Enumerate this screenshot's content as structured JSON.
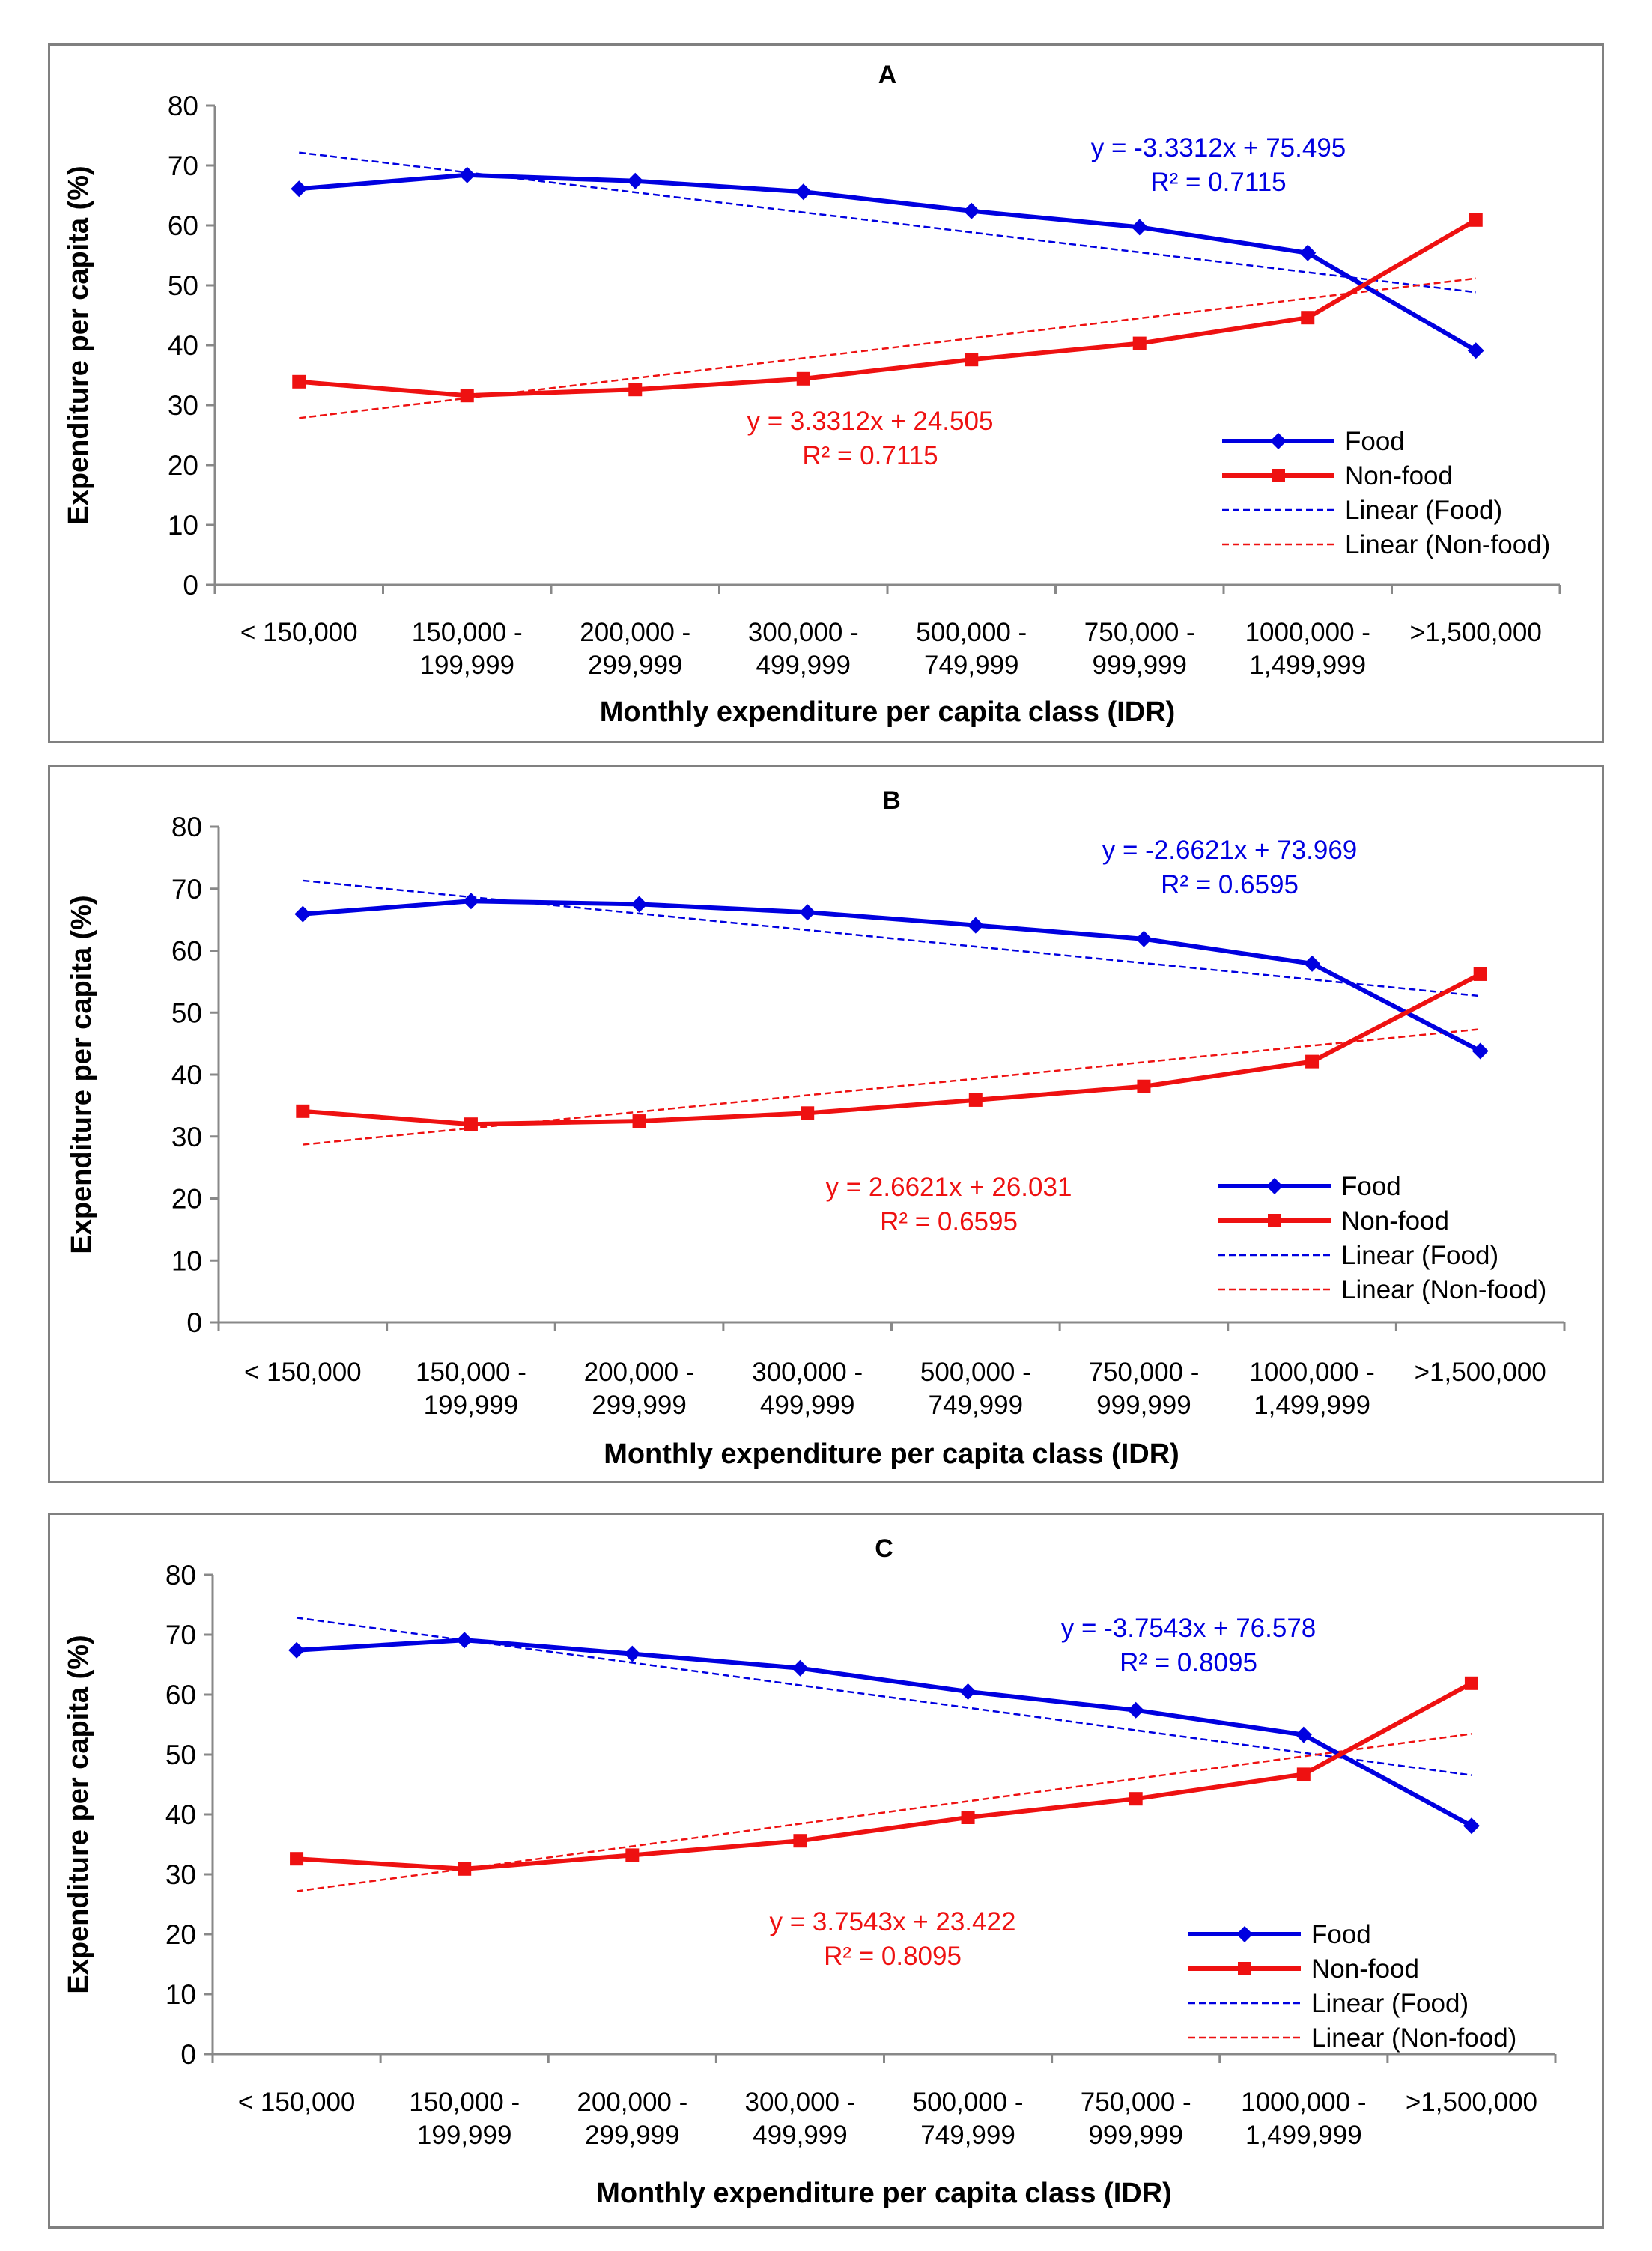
{
  "chart_data": [
    {
      "type": "line",
      "panel_label": "A",
      "xlabel": "Monthly expenditure per capita class (IDR)",
      "ylabel": "Expenditure per capita (%)",
      "ylim": [
        0,
        80
      ],
      "yticks": [
        "0",
        "10",
        "20",
        "30",
        "40",
        "50",
        "60",
        "70",
        "80"
      ],
      "categories": [
        [
          "< 150,000"
        ],
        [
          "150,000 -",
          "199,999"
        ],
        [
          "200,000 -",
          "299,999"
        ],
        [
          "300,000 -",
          "499,999"
        ],
        [
          "500,000 -",
          "749,999"
        ],
        [
          "750,000 -",
          "999,999"
        ],
        [
          "1000,000 -",
          "1,499,999"
        ],
        [
          ">1,500,000"
        ]
      ],
      "series": [
        {
          "name": "Food",
          "color": "#0000E0",
          "marker": "diamond",
          "values": [
            66.1,
            68.4,
            67.4,
            65.6,
            62.4,
            59.7,
            55.4,
            39.1
          ]
        },
        {
          "name": "Non-food",
          "color": "#EE1111",
          "marker": "square",
          "values": [
            33.9,
            31.6,
            32.6,
            34.4,
            37.6,
            40.3,
            44.6,
            60.9
          ]
        }
      ],
      "trendlines": [
        {
          "name": "Linear (Food)",
          "color": "#0000E0",
          "slope": -3.3312,
          "intercept": 75.495,
          "equation": "y = -3.3312x + 75.495",
          "r2": "R² = 0.7115",
          "label_position": "top-right"
        },
        {
          "name": "Linear (Non-food)",
          "color": "#EE1111",
          "slope": 3.3312,
          "intercept": 24.505,
          "equation": "y = 3.3312x + 24.505",
          "r2": "R² = 0.7115",
          "label_position": "center"
        }
      ],
      "legend": [
        "Food",
        "Non-food",
        "Linear (Food)",
        "Linear (Non-food)"
      ],
      "legend_position": "bottom-right"
    },
    {
      "type": "line",
      "panel_label": "B",
      "xlabel": "Monthly expenditure per capita class (IDR)",
      "ylabel": "Expenditure per capita (%)",
      "ylim": [
        0,
        80
      ],
      "yticks": [
        "0",
        "10",
        "20",
        "30",
        "40",
        "50",
        "60",
        "70",
        "80"
      ],
      "categories": [
        [
          "< 150,000"
        ],
        [
          "150,000 -",
          "199,999"
        ],
        [
          "200,000 -",
          "299,999"
        ],
        [
          "300,000 -",
          "499,999"
        ],
        [
          "500,000 -",
          "749,999"
        ],
        [
          "750,000 -",
          "999,999"
        ],
        [
          "1000,000 -",
          "1,499,999"
        ],
        [
          ">1,500,000"
        ]
      ],
      "series": [
        {
          "name": "Food",
          "color": "#0000E0",
          "marker": "diamond",
          "values": [
            65.9,
            68.0,
            67.5,
            66.2,
            64.1,
            61.9,
            57.9,
            43.8
          ]
        },
        {
          "name": "Non-food",
          "color": "#EE1111",
          "marker": "square",
          "values": [
            34.1,
            32.0,
            32.5,
            33.8,
            35.9,
            38.1,
            42.1,
            56.2
          ]
        }
      ],
      "trendlines": [
        {
          "name": "Linear (Food)",
          "color": "#0000E0",
          "slope": -2.6621,
          "intercept": 73.969,
          "equation": "y = -2.6621x + 73.969",
          "r2": "R² = 0.6595",
          "label_position": "top-right"
        },
        {
          "name": "Linear (Non-food)",
          "color": "#EE1111",
          "slope": 2.6621,
          "intercept": 26.031,
          "equation": "y = 2.6621x + 26.031",
          "r2": "R² = 0.6595",
          "label_position": "center"
        }
      ],
      "legend": [
        "Food",
        "Non-food",
        "Linear (Food)",
        "Linear (Non-food)"
      ],
      "legend_position": "bottom-right"
    },
    {
      "type": "line",
      "panel_label": "C",
      "xlabel": "Monthly expenditure per capita class (IDR)",
      "ylabel": "Expenditure per capita (%)",
      "ylim": [
        0,
        80
      ],
      "yticks": [
        "0",
        "10",
        "20",
        "30",
        "40",
        "50",
        "60",
        "70",
        "80"
      ],
      "categories": [
        [
          "< 150,000"
        ],
        [
          "150,000 -",
          "199,999"
        ],
        [
          "200,000 -",
          "299,999"
        ],
        [
          "300,000 -",
          "499,999"
        ],
        [
          "500,000 -",
          "749,999"
        ],
        [
          "750,000 -",
          "999,999"
        ],
        [
          "1000,000 -",
          "1,499,999"
        ],
        [
          ">1,500,000"
        ]
      ],
      "series": [
        {
          "name": "Food",
          "color": "#0000E0",
          "marker": "diamond",
          "values": [
            67.4,
            69.1,
            66.8,
            64.4,
            60.5,
            57.4,
            53.3,
            38.1
          ]
        },
        {
          "name": "Non-food",
          "color": "#EE1111",
          "marker": "square",
          "values": [
            32.6,
            30.9,
            33.2,
            35.6,
            39.5,
            42.6,
            46.7,
            61.9
          ]
        }
      ],
      "trendlines": [
        {
          "name": "Linear (Food)",
          "color": "#0000E0",
          "slope": -3.7543,
          "intercept": 76.578,
          "equation": "y = -3.7543x + 76.578",
          "r2": "R² = 0.8095",
          "label_position": "top-right"
        },
        {
          "name": "Linear (Non-food)",
          "color": "#EE1111",
          "slope": 3.7543,
          "intercept": 23.422,
          "equation": "y = 3.7543x + 23.422",
          "r2": "R² = 0.8095",
          "label_position": "center"
        }
      ],
      "legend": [
        "Food",
        "Non-food",
        "Linear (Food)",
        "Linear (Non-food)"
      ],
      "legend_position": "bottom-right"
    }
  ]
}
